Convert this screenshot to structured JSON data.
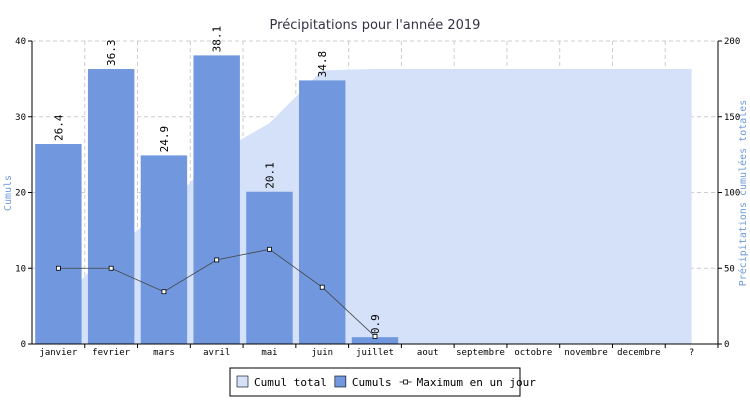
{
  "chart_data": {
    "type": "bar",
    "title": "Précipitations pour l'année 2019",
    "categories": [
      "janvier",
      "fevrier",
      "mars",
      "avril",
      "mai",
      "juin",
      "juillet",
      "aout",
      "septembre",
      "octobre",
      "novembre",
      "decembre",
      "?"
    ],
    "y_label": "Cumuls",
    "y2_label": "Précipitations cumulées totales",
    "ylim": [
      0,
      40
    ],
    "yticks": [
      0,
      10,
      20,
      30,
      40
    ],
    "y2lim": [
      0,
      200
    ],
    "y2ticks": [
      0,
      50,
      100,
      150,
      200
    ],
    "grid": true,
    "legend": "bottom",
    "series": [
      {
        "name": "Cumul total",
        "type": "area",
        "axis": "y2",
        "color": "#d4e1f9",
        "values": [
          26.4,
          62.7,
          87.6,
          125.7,
          145.8,
          180.6,
          181.5,
          181.5,
          181.5,
          181.5,
          181.5,
          181.5,
          181.5
        ]
      },
      {
        "name": "Cumuls",
        "type": "bar",
        "color": "#7198de",
        "values": [
          26.4,
          36.3,
          24.9,
          38.1,
          20.1,
          34.8,
          0.9,
          null,
          null,
          null,
          null,
          null,
          null
        ]
      },
      {
        "name": "Maximum en un jour",
        "type": "line",
        "color": "#444444",
        "values": [
          10.0,
          10.0,
          6.9,
          11.1,
          12.5,
          7.5,
          1.0,
          null,
          null,
          null,
          null,
          null,
          null
        ]
      }
    ]
  }
}
